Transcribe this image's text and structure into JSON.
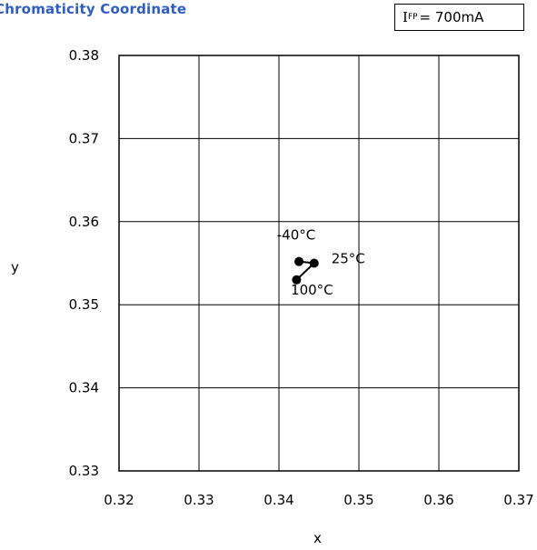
{
  "chart_data": {
    "type": "scatter",
    "title": "Chromaticity Coordinate",
    "condition": {
      "symbol": "I",
      "subscript": "FP",
      "value": "= 700mA"
    },
    "xlabel": "x",
    "ylabel": "y",
    "xlim": [
      0.32,
      0.37
    ],
    "ylim": [
      0.33,
      0.38
    ],
    "xticks": [
      "0.32",
      "0.33",
      "0.34",
      "0.35",
      "0.36",
      "0.37"
    ],
    "yticks": [
      "0.33",
      "0.34",
      "0.35",
      "0.36",
      "0.37",
      "0.38"
    ],
    "grid": true,
    "series": [
      {
        "points": [
          {
            "x": 0.3425,
            "y": 0.3552,
            "label": "-40°C"
          },
          {
            "x": 0.3444,
            "y": 0.355,
            "label": "25°C"
          },
          {
            "x": 0.3422,
            "y": 0.353,
            "label": "100°C"
          }
        ]
      }
    ]
  }
}
